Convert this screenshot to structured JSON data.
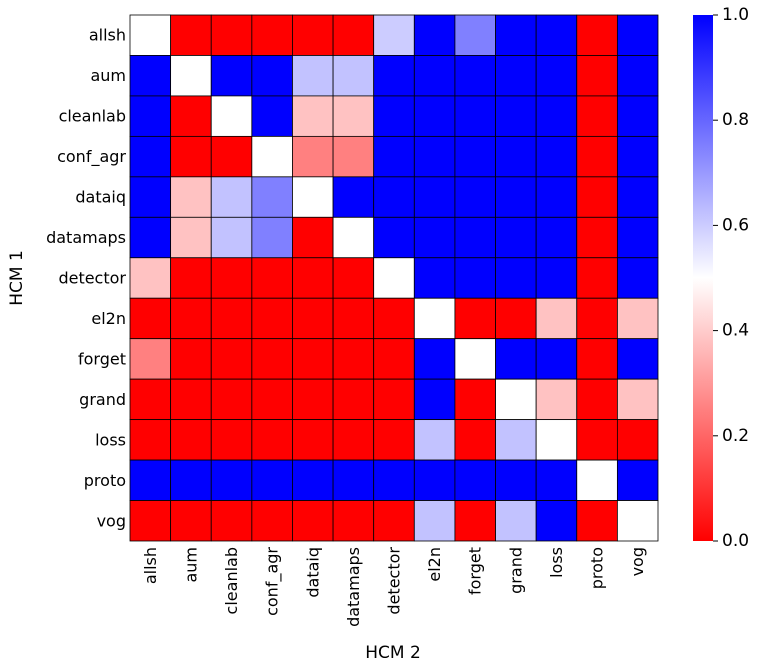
{
  "chart_data": {
    "type": "heatmap",
    "title": "",
    "xlabel": "HCM 2",
    "ylabel": "HCM 1",
    "x_categories": [
      "allsh",
      "aum",
      "cleanlab",
      "conf_agr",
      "dataiq",
      "datamaps",
      "detector",
      "el2n",
      "forget",
      "grand",
      "loss",
      "proto",
      "vog"
    ],
    "y_categories": [
      "allsh",
      "aum",
      "cleanlab",
      "conf_agr",
      "dataiq",
      "datamaps",
      "detector",
      "el2n",
      "forget",
      "grand",
      "loss",
      "proto",
      "vog"
    ],
    "values": [
      [
        0.5,
        0.0,
        0.0,
        0.0,
        0.0,
        0.0,
        0.6,
        1.0,
        0.75,
        1.0,
        1.0,
        0.0,
        1.0
      ],
      [
        1.0,
        0.5,
        1.0,
        1.0,
        0.62,
        0.62,
        1.0,
        1.0,
        1.0,
        1.0,
        1.0,
        0.0,
        1.0
      ],
      [
        1.0,
        0.0,
        0.5,
        1.0,
        0.38,
        0.38,
        1.0,
        1.0,
        1.0,
        1.0,
        1.0,
        0.0,
        1.0
      ],
      [
        1.0,
        0.0,
        0.0,
        0.5,
        0.25,
        0.25,
        1.0,
        1.0,
        1.0,
        1.0,
        1.0,
        0.0,
        1.0
      ],
      [
        1.0,
        0.38,
        0.62,
        0.75,
        0.5,
        1.0,
        1.0,
        1.0,
        1.0,
        1.0,
        1.0,
        0.0,
        1.0
      ],
      [
        1.0,
        0.38,
        0.62,
        0.75,
        0.0,
        0.5,
        1.0,
        1.0,
        1.0,
        1.0,
        1.0,
        0.0,
        1.0
      ],
      [
        0.38,
        0.0,
        0.0,
        0.0,
        0.0,
        0.0,
        0.5,
        1.0,
        1.0,
        1.0,
        1.0,
        0.0,
        1.0
      ],
      [
        0.0,
        0.0,
        0.0,
        0.0,
        0.0,
        0.0,
        0.0,
        0.5,
        0.0,
        0.0,
        0.38,
        0.0,
        0.38
      ],
      [
        0.25,
        0.0,
        0.0,
        0.0,
        0.0,
        0.0,
        0.0,
        1.0,
        0.5,
        1.0,
        1.0,
        0.0,
        1.0
      ],
      [
        0.0,
        0.0,
        0.0,
        0.0,
        0.0,
        0.0,
        0.0,
        1.0,
        0.0,
        0.5,
        0.38,
        0.0,
        0.38
      ],
      [
        0.0,
        0.0,
        0.0,
        0.0,
        0.0,
        0.0,
        0.0,
        0.62,
        0.0,
        0.62,
        0.5,
        0.0,
        0.0
      ],
      [
        1.0,
        1.0,
        1.0,
        1.0,
        1.0,
        1.0,
        1.0,
        1.0,
        1.0,
        1.0,
        1.0,
        0.5,
        1.0
      ],
      [
        0.0,
        0.0,
        0.0,
        0.0,
        0.0,
        0.0,
        0.0,
        0.62,
        0.0,
        0.62,
        1.0,
        0.0,
        0.5
      ]
    ],
    "colorbar": {
      "min": 0.0,
      "max": 1.0,
      "ticks": [
        0.0,
        0.2,
        0.4,
        0.6,
        0.8,
        1.0
      ],
      "tick_labels": [
        "0.0",
        "0.2",
        "0.4",
        "0.6",
        "0.8",
        "1.0"
      ],
      "colormap": "bwr_r",
      "low_color": "#ff0000",
      "mid_color": "#ffffff",
      "high_color": "#0000ff"
    },
    "grid_color": "#000000"
  }
}
